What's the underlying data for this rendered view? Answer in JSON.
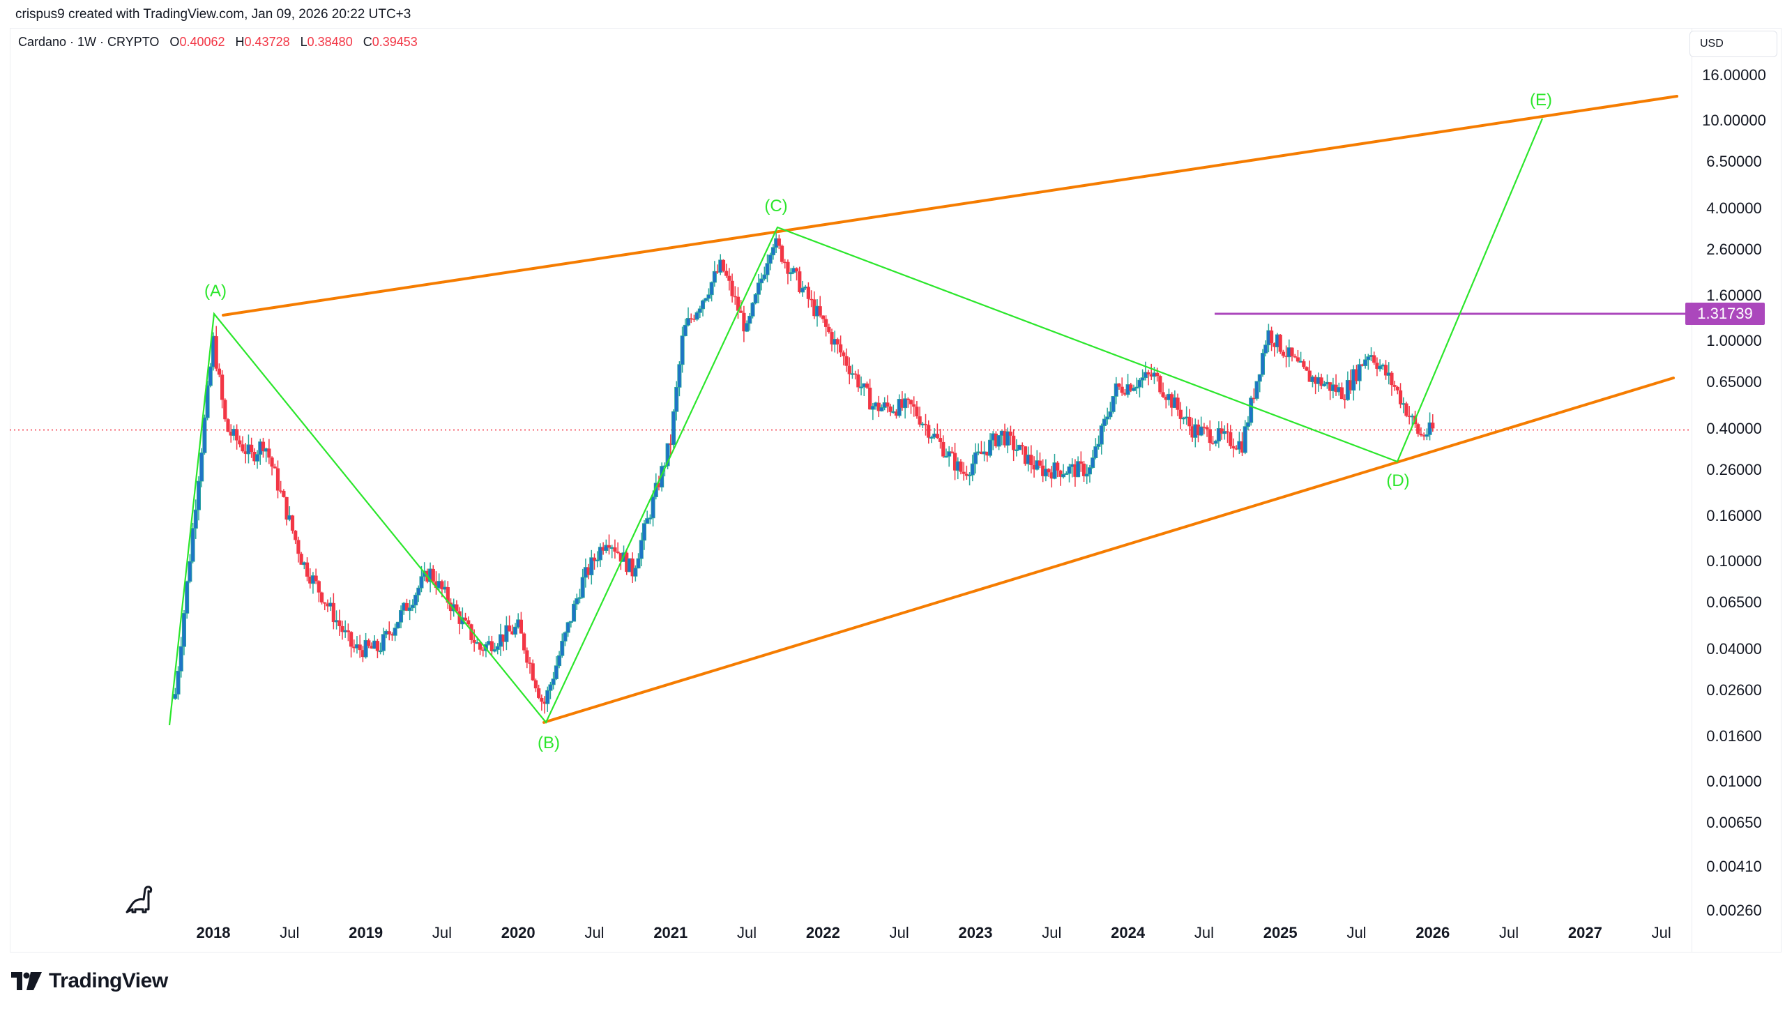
{
  "header": {
    "credit": "crispus9 created with TradingView.com, Jan 09, 2026 20:22 UTC+3"
  },
  "legend": {
    "symbol": "Cardano · 1W · CRYPTO",
    "open_label": "O",
    "open": "0.40062",
    "high_label": "H",
    "high": "0.43728",
    "low_label": "L",
    "low": "0.38480",
    "close_label": "C",
    "close": "0.39453"
  },
  "price_axis": {
    "currency": "USD",
    "current_level_label": "1.31739"
  },
  "footer": {
    "brand": "TradingView"
  },
  "colors": {
    "up_body": "#1e74c6",
    "up_wick": "#26a69a",
    "down": "#f23645",
    "wedge_lines": "#f57c00",
    "wave_lines": "#2be62b",
    "horizontal_level": "#ab47bc",
    "current_price_line": "#f23645"
  },
  "chart_data": {
    "type": "candlestick",
    "title": "Cardano · 1W · CRYPTO",
    "scale": "log",
    "ylabel": "USD",
    "ylim": [
      0.0022,
      20
    ],
    "grid": false,
    "y_ticks": [
      "16.00000",
      "10.00000",
      "6.50000",
      "4.00000",
      "2.60000",
      "1.60000",
      "1.00000",
      "0.65000",
      "0.40000",
      "0.26000",
      "0.16000",
      "0.10000",
      "0.06500",
      "0.04000",
      "0.02600",
      "0.01600",
      "0.01000",
      "0.00650",
      "0.00410",
      "0.00260"
    ],
    "x_ticks": [
      {
        "label": "2018",
        "bold": true
      },
      {
        "label": "Jul",
        "bold": false
      },
      {
        "label": "2019",
        "bold": true
      },
      {
        "label": "Jul",
        "bold": false
      },
      {
        "label": "2020",
        "bold": true
      },
      {
        "label": "Jul",
        "bold": false
      },
      {
        "label": "2021",
        "bold": true
      },
      {
        "label": "Jul",
        "bold": false
      },
      {
        "label": "2022",
        "bold": true
      },
      {
        "label": "Jul",
        "bold": false
      },
      {
        "label": "2023",
        "bold": true
      },
      {
        "label": "Jul",
        "bold": false
      },
      {
        "label": "2024",
        "bold": true
      },
      {
        "label": "Jul",
        "bold": false
      },
      {
        "label": "2025",
        "bold": true
      },
      {
        "label": "Jul",
        "bold": false
      },
      {
        "label": "2026",
        "bold": true
      },
      {
        "label": "Jul",
        "bold": false
      },
      {
        "label": "2027",
        "bold": true
      },
      {
        "label": "Jul",
        "bold": false
      }
    ],
    "last_bar": {
      "open": 0.40062,
      "high": 0.43728,
      "low": 0.3848,
      "close": 0.39453
    },
    "current_price": 0.39453,
    "horizontal_level": 1.31739,
    "wave_points": [
      {
        "label": "(A)",
        "date": "2018-01",
        "price": 1.33
      },
      {
        "label": "(B)",
        "date": "2020-03",
        "price": 0.018
      },
      {
        "label": "(C)",
        "date": "2021-09",
        "price": 3.1
      },
      {
        "label": "(D)",
        "date": "2025-10",
        "price": 0.27
      },
      {
        "label": "(E)",
        "date": "2026-10",
        "price": 10.0
      }
    ],
    "wedge": {
      "upper": [
        {
          "date": "2018-01",
          "price": 1.33
        },
        {
          "date": "2027-07",
          "price": 12.0
        }
      ],
      "lower": [
        {
          "date": "2020-03",
          "price": 0.018
        },
        {
          "date": "2027-07",
          "price": 0.65
        }
      ]
    },
    "price_path_approx": [
      {
        "date": "2017-10",
        "price": 0.025
      },
      {
        "date": "2017-12",
        "price": 0.3
      },
      {
        "date": "2018-01",
        "price": 1.0
      },
      {
        "date": "2018-02",
        "price": 0.4
      },
      {
        "date": "2018-04",
        "price": 0.3
      },
      {
        "date": "2018-05",
        "price": 0.35
      },
      {
        "date": "2018-08",
        "price": 0.1
      },
      {
        "date": "2018-12",
        "price": 0.04
      },
      {
        "date": "2019-02",
        "price": 0.04
      },
      {
        "date": "2019-06",
        "price": 0.09
      },
      {
        "date": "2019-10",
        "price": 0.04
      },
      {
        "date": "2020-01",
        "price": 0.05
      },
      {
        "date": "2020-03",
        "price": 0.022
      },
      {
        "date": "2020-06",
        "price": 0.08
      },
      {
        "date": "2020-08",
        "price": 0.13
      },
      {
        "date": "2020-10",
        "price": 0.09
      },
      {
        "date": "2021-01",
        "price": 0.35
      },
      {
        "date": "2021-02",
        "price": 1.1
      },
      {
        "date": "2021-05",
        "price": 2.2
      },
      {
        "date": "2021-07",
        "price": 1.1
      },
      {
        "date": "2021-09",
        "price": 2.9
      },
      {
        "date": "2022-01",
        "price": 1.2
      },
      {
        "date": "2022-05",
        "price": 0.5
      },
      {
        "date": "2022-08",
        "price": 0.5
      },
      {
        "date": "2022-12",
        "price": 0.25
      },
      {
        "date": "2023-03",
        "price": 0.38
      },
      {
        "date": "2023-06",
        "price": 0.26
      },
      {
        "date": "2023-10",
        "price": 0.26
      },
      {
        "date": "2023-12",
        "price": 0.6
      },
      {
        "date": "2024-03",
        "price": 0.7
      },
      {
        "date": "2024-06",
        "price": 0.4
      },
      {
        "date": "2024-10",
        "price": 0.34
      },
      {
        "date": "2024-12",
        "price": 1.1
      },
      {
        "date": "2025-03",
        "price": 0.7
      },
      {
        "date": "2025-06",
        "price": 0.58
      },
      {
        "date": "2025-08",
        "price": 0.9
      },
      {
        "date": "2025-10",
        "price": 0.62
      },
      {
        "date": "2025-12",
        "price": 0.37
      },
      {
        "date": "2026-01",
        "price": 0.39453
      }
    ]
  }
}
